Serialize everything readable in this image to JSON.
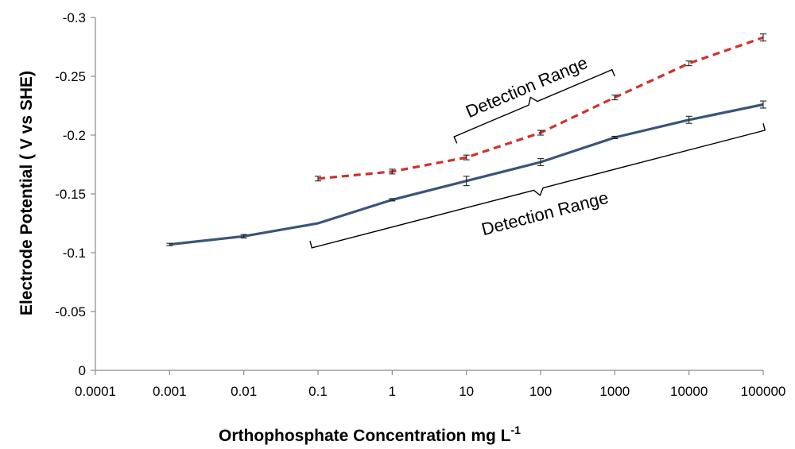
{
  "chart_data": {
    "type": "line",
    "xscale": "log",
    "x_ticks": [
      "0.0001",
      "0.001",
      "0.01",
      "0.1",
      "1",
      "10",
      "100",
      "1000",
      "10000",
      "100000"
    ],
    "xlim": [
      0.0001,
      100000
    ],
    "y_ticks": [
      "-0.3",
      "-0.25",
      "-0.2",
      "-0.15",
      "-0.1",
      "-0.05",
      "0"
    ],
    "ylim": [
      0,
      -0.3
    ],
    "y_inverted": true,
    "xlabel": "Orthophosphate  Concentration mg L",
    "xlabel_sup": "-1",
    "ylabel": "Electrode Potential ( V vs SHE)",
    "grid": false,
    "series": [
      {
        "color": "#3a5578",
        "style": "solid",
        "x": [
          0.001,
          0.01,
          0.1,
          1,
          10,
          100,
          1000,
          10000,
          100000
        ],
        "y": [
          -0.107,
          -0.114,
          -0.125,
          -0.145,
          -0.161,
          -0.177,
          -0.198,
          -0.213,
          -0.226
        ],
        "err": [
          0.001,
          0.0015,
          0,
          0.001,
          0.004,
          0.003,
          0.001,
          0.003,
          0.003
        ]
      },
      {
        "color": "#d0312d",
        "style": "dashed",
        "x": [
          0.1,
          1,
          10,
          100,
          1000,
          10000,
          100000
        ],
        "y": [
          -0.163,
          -0.169,
          -0.181,
          -0.202,
          -0.232,
          -0.261,
          -0.283
        ],
        "err": [
          0.002,
          0.002,
          0.002,
          0.002,
          0.002,
          0.002,
          0.003
        ]
      }
    ],
    "annotations": [
      {
        "text": "Detection Range",
        "series": "dashed",
        "x_from": 10,
        "x_to": 1000
      },
      {
        "text": "Detection Range",
        "series": "solid",
        "x_from": 0.1,
        "x_to": 100000
      }
    ]
  }
}
